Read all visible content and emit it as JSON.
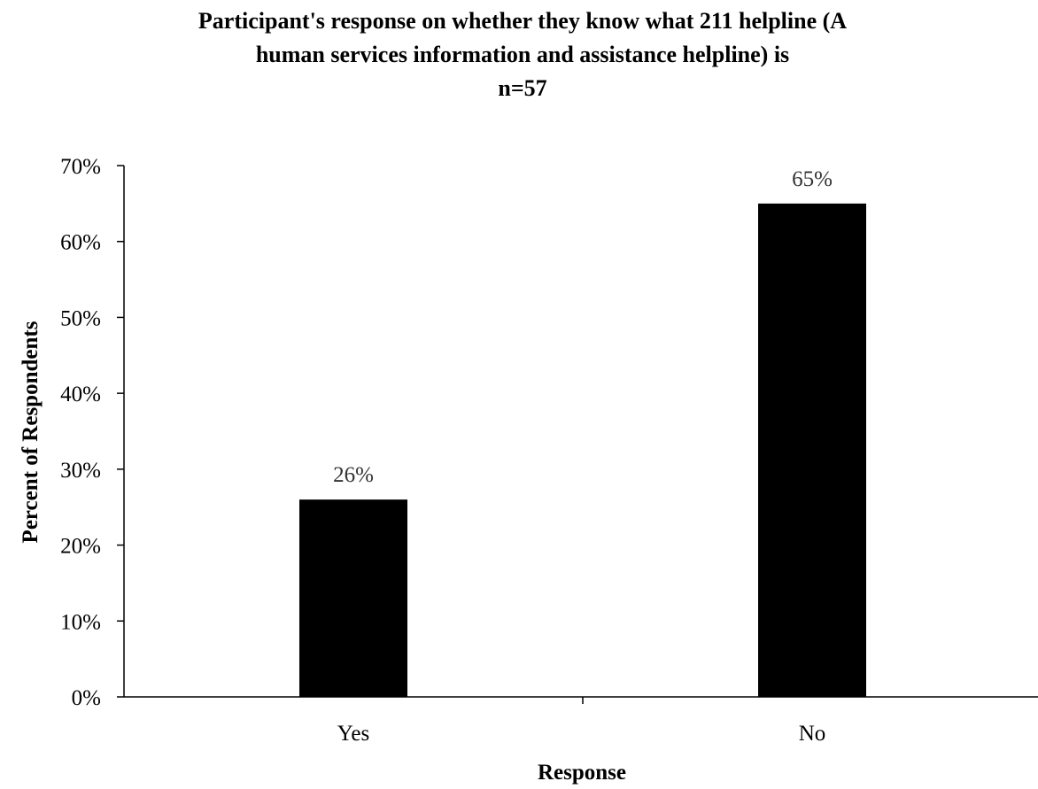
{
  "chart_data": {
    "type": "bar",
    "title_lines": [
      "Participant's response on whether they know what 211 helpline (A",
      "human services information and assistance helpline) is",
      "n=57"
    ],
    "categories": [
      "Yes",
      "No"
    ],
    "values": [
      26,
      65
    ],
    "data_labels": [
      "26%",
      "65%"
    ],
    "xlabel": "Response",
    "ylabel": "Percent of Respondents",
    "ylim": [
      0,
      70
    ],
    "yticks": [
      0,
      10,
      20,
      30,
      40,
      50,
      60,
      70
    ],
    "ytick_labels": [
      "0%",
      "10%",
      "20%",
      "30%",
      "40%",
      "50%",
      "60%",
      "70%"
    ],
    "grid": false,
    "legend": "none",
    "bar_color": "#000000",
    "data_label_color": "#333333"
  }
}
